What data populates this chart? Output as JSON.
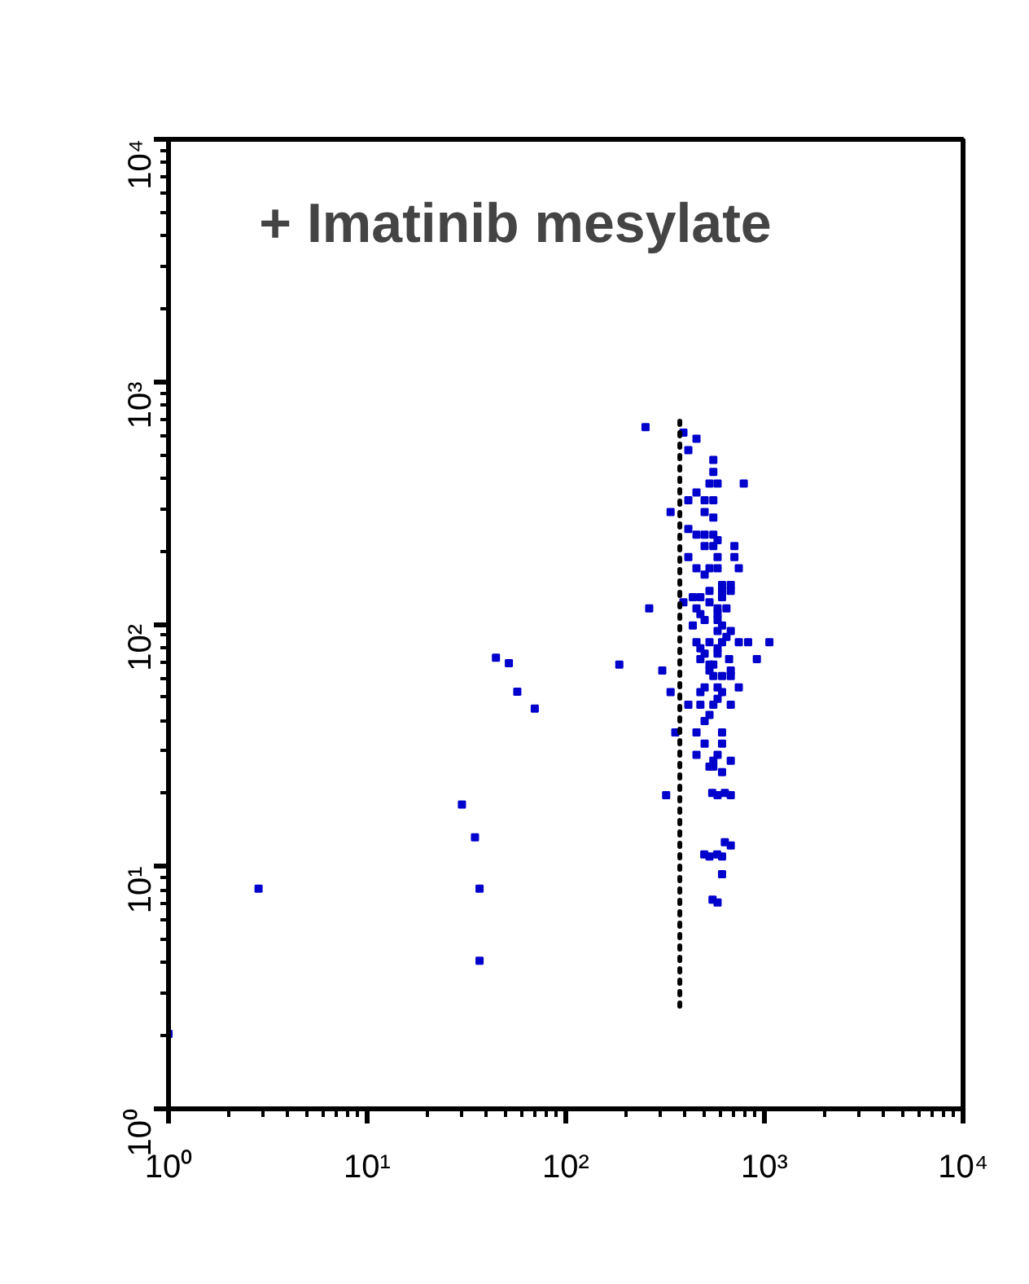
{
  "chart_data": {
    "type": "scatter",
    "title": "+ Imatinib mesylate",
    "log": "xy",
    "grid": false,
    "xlim": [
      1,
      10000
    ],
    "ylim": [
      1,
      10000
    ],
    "xticks": [
      {
        "value": 1,
        "label": "10⁰"
      },
      {
        "value": 10,
        "label": "10¹"
      },
      {
        "value": 100,
        "label": "10²"
      },
      {
        "value": 1000,
        "label": "10³"
      },
      {
        "value": 10000,
        "label": "10⁴"
      }
    ],
    "yticks": [
      {
        "value": 1,
        "label": "10⁰"
      },
      {
        "value": 10,
        "label": "10¹"
      },
      {
        "value": 100,
        "label": "10²"
      },
      {
        "value": 1000,
        "label": "10³"
      },
      {
        "value": 10000,
        "label": "10⁴"
      }
    ],
    "series": [
      {
        "marker": "square",
        "color": "#0000cc",
        "x": [
          1,
          2.84,
          30,
          34.9,
          36.8,
          36.8,
          44.5,
          51.7,
          57,
          69.8,
          186,
          263,
          306,
          320,
          337,
          356,
          252,
          391,
          455,
          414,
          553,
          553,
          529,
          581,
          787,
          455,
          414,
          500,
          553,
          337,
          500,
          553,
          414,
          455,
          500,
          553,
          581,
          500,
          553,
          706,
          414,
          581,
          706,
          455,
          529,
          581,
          743,
          500,
          612,
          677,
          529,
          612,
          677,
          436,
          476,
          612,
          391,
          529,
          455,
          581,
          644,
          476,
          581,
          500,
          581,
          436,
          612,
          581,
          677,
          644,
          455,
          529,
          612,
          743,
          828,
          1059,
          476,
          581,
          500,
          581,
          476,
          664,
          916,
          529,
          553,
          529,
          677,
          553,
          612,
          677,
          500,
          581,
          743,
          476,
          612,
          581,
          414,
          476,
          553,
          677,
          529,
          500,
          455,
          612,
          500,
          612,
          581,
          455,
          553,
          677,
          529,
          553,
          612,
          581,
          677,
          546,
          632,
          677,
          529,
          612,
          612,
          581,
          498,
          578,
          632,
          548
        ],
        "values": [
          2.04,
          8.1,
          18,
          13.2,
          8.1,
          4.08,
          72.6,
          69,
          52.6,
          44.8,
          68.1,
          116,
          64.3,
          19.7,
          52.4,
          35.7,
          649,
          617,
          582,
          522,
          476,
          424,
          380,
          380,
          380,
          349,
          324,
          324,
          324,
          290,
          290,
          275,
          247,
          234,
          234,
          234,
          222,
          210,
          210,
          210,
          189,
          189,
          189,
          170,
          170,
          170,
          170,
          160,
          145,
          145,
          137,
          137,
          137,
          129,
          129,
          129,
          123,
          123,
          116,
          116,
          116,
          110,
          110,
          104,
          104,
          98.7,
          98.7,
          93.7,
          93.7,
          88.5,
          84.1,
          84.1,
          84.1,
          84.1,
          84.1,
          84.1,
          79.5,
          79.5,
          75.5,
          75.5,
          71.7,
          71.7,
          71.7,
          68.1,
          68.1,
          64.3,
          64.3,
          61.1,
          61.1,
          61.1,
          54.8,
          54.8,
          54.8,
          52.4,
          52.4,
          49.2,
          46.5,
          46.5,
          46.5,
          46.5,
          42.2,
          39.8,
          35.7,
          35.7,
          32.1,
          32.1,
          28.9,
          28.9,
          27.3,
          27.3,
          25.8,
          25.8,
          24.5,
          19.7,
          19.7,
          20.1,
          20.1,
          12.2,
          11,
          11,
          9.3,
          7.1,
          11.2,
          11.2,
          12.6,
          7.3
        ]
      },
      {
        "type": "line",
        "color": "#000000",
        "line_style": "dotted",
        "x": [
          375,
          375
        ],
        "values": [
          2.65,
          690
        ]
      }
    ]
  }
}
